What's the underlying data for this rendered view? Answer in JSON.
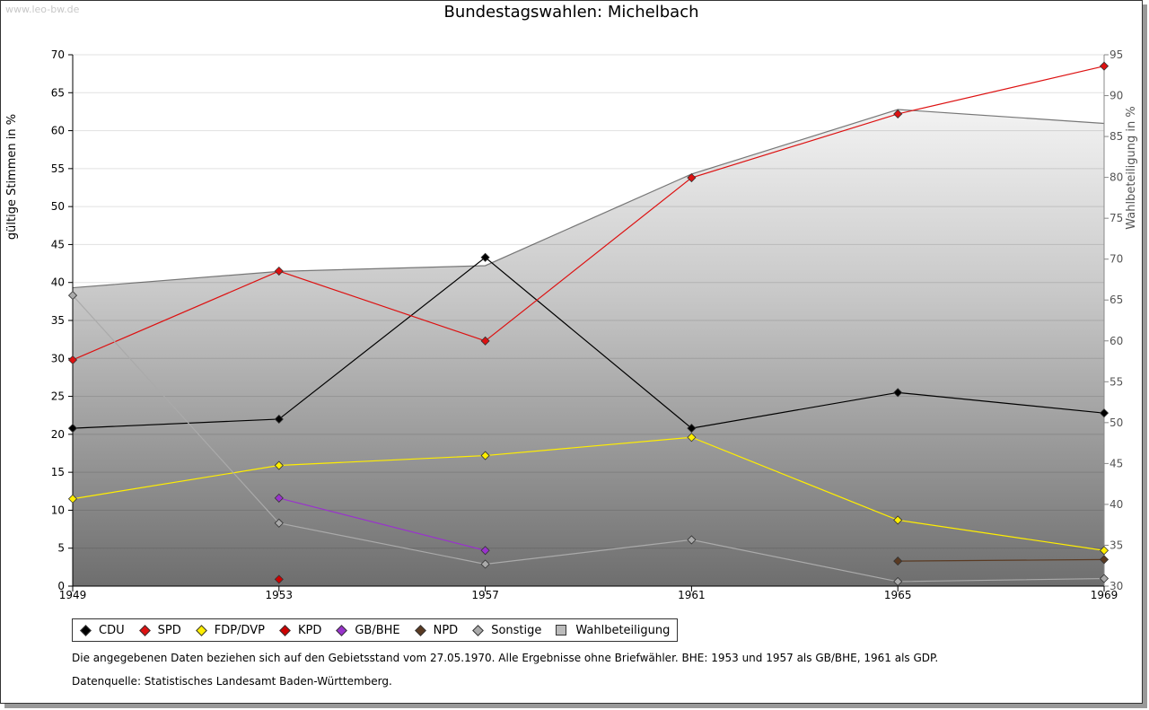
{
  "watermark": "www.leo-bw.de",
  "legend": [
    {
      "label": "CDU",
      "color": "#000000",
      "kind": "diamond"
    },
    {
      "label": "SPD",
      "color": "#dd1111",
      "kind": "diamond"
    },
    {
      "label": "FDP/DVP",
      "color": "#ffee00",
      "kind": "diamond"
    },
    {
      "label": "KPD",
      "color": "#cc0000",
      "kind": "diamond"
    },
    {
      "label": "GB/BHE",
      "color": "#9933cc",
      "kind": "diamond"
    },
    {
      "label": "NPD",
      "color": "#5a3a22",
      "kind": "diamond"
    },
    {
      "label": "Sonstige",
      "color": "#aaaaaa",
      "kind": "diamond"
    },
    {
      "label": "Wahlbeteiligung",
      "color": "#bbbbbb",
      "kind": "square"
    }
  ],
  "notes": {
    "line1": "Die angegebenen Daten beziehen sich auf den Gebietsstand vom 27.05.1970. Alle Ergebnisse ohne Briefwähler. BHE: 1953 und 1957 als GB/BHE, 1961 als GDP.",
    "line2": "Datenquelle: Statistisches Landesamt Baden-Württemberg."
  },
  "chart_data": {
    "type": "line",
    "title": "Bundestagswahlen: Michelbach",
    "x": [
      1949,
      1953,
      1957,
      1961,
      1965,
      1969
    ],
    "xlabel": "",
    "ylabel": "gültige Stimmen in %",
    "ylabel_right": "Wahlbeteiligung in %",
    "ylim": [
      0,
      70
    ],
    "yticks": [
      0,
      5,
      10,
      15,
      20,
      25,
      30,
      35,
      40,
      45,
      50,
      55,
      60,
      65,
      70
    ],
    "ylim_right": [
      30,
      95
    ],
    "yticks_right": [
      30,
      35,
      40,
      45,
      50,
      55,
      60,
      65,
      70,
      75,
      80,
      85,
      90,
      95
    ],
    "grid": true,
    "legend_position": "bottom",
    "area_series": {
      "name": "Wahlbeteiligung",
      "axis": "right",
      "values": [
        66.5,
        68.5,
        69.2,
        80.4,
        88.3,
        86.6
      ]
    },
    "series": [
      {
        "name": "CDU",
        "color": "#000000",
        "values": [
          20.8,
          22.0,
          43.3,
          20.8,
          25.5,
          22.8
        ]
      },
      {
        "name": "SPD",
        "color": "#dd1111",
        "values": [
          29.8,
          41.5,
          32.3,
          53.8,
          62.2,
          68.5
        ]
      },
      {
        "name": "FDP/DVP",
        "color": "#ffee00",
        "values": [
          11.5,
          15.9,
          17.2,
          19.6,
          8.7,
          4.7
        ]
      },
      {
        "name": "KPD",
        "color": "#cc0000",
        "values": [
          null,
          0.9,
          null,
          null,
          null,
          null
        ]
      },
      {
        "name": "GB/BHE",
        "color": "#9933cc",
        "values": [
          null,
          11.6,
          4.7,
          null,
          null,
          null
        ]
      },
      {
        "name": "NPD",
        "color": "#5a3a22",
        "values": [
          null,
          null,
          null,
          null,
          3.3,
          3.5
        ]
      },
      {
        "name": "Sonstige",
        "color": "#aaaaaa",
        "values": [
          38.3,
          8.3,
          2.9,
          6.1,
          0.6,
          1.0
        ]
      }
    ]
  }
}
